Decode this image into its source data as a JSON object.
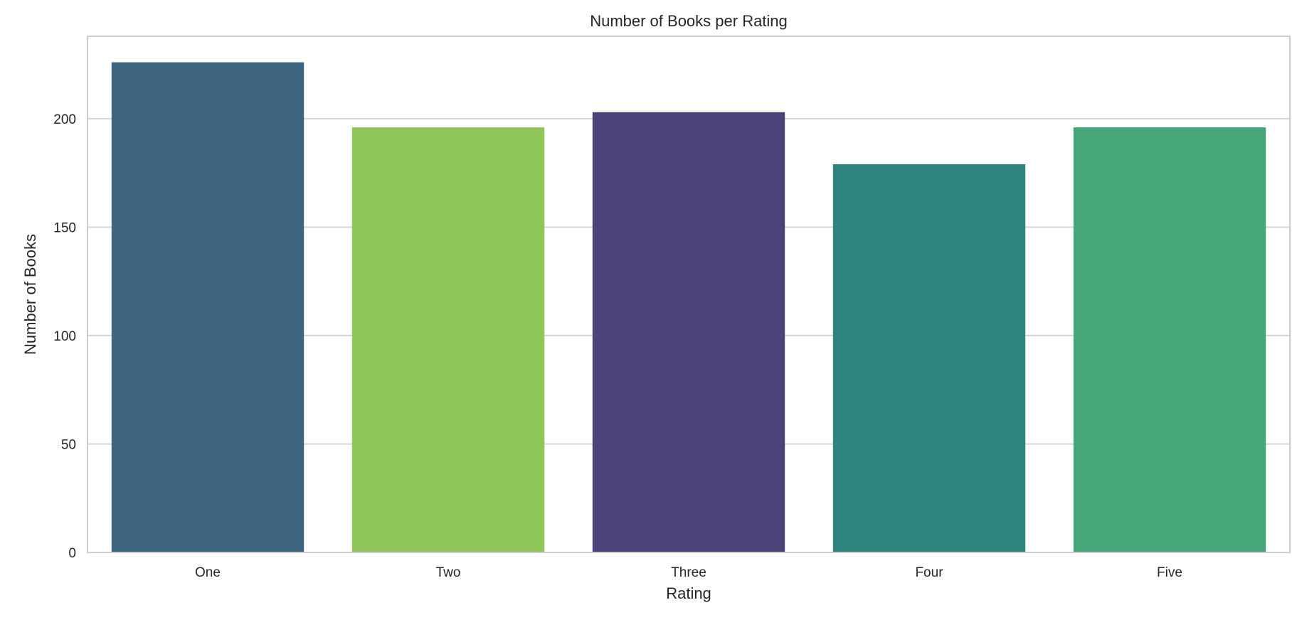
{
  "chart_data": {
    "type": "bar",
    "title": "Number of Books per Rating",
    "xlabel": "Rating",
    "ylabel": "Number of Books",
    "categories": [
      "One",
      "Two",
      "Three",
      "Four",
      "Five"
    ],
    "values": [
      226,
      196,
      203,
      179,
      196
    ],
    "colors": [
      "#3e6580",
      "#8fc65a",
      "#4b4379",
      "#2e847d",
      "#46a677"
    ],
    "ylim": [
      0,
      238
    ],
    "yticks": [
      0,
      50,
      100,
      150,
      200
    ],
    "grid": "horizontal",
    "legend": "none"
  }
}
